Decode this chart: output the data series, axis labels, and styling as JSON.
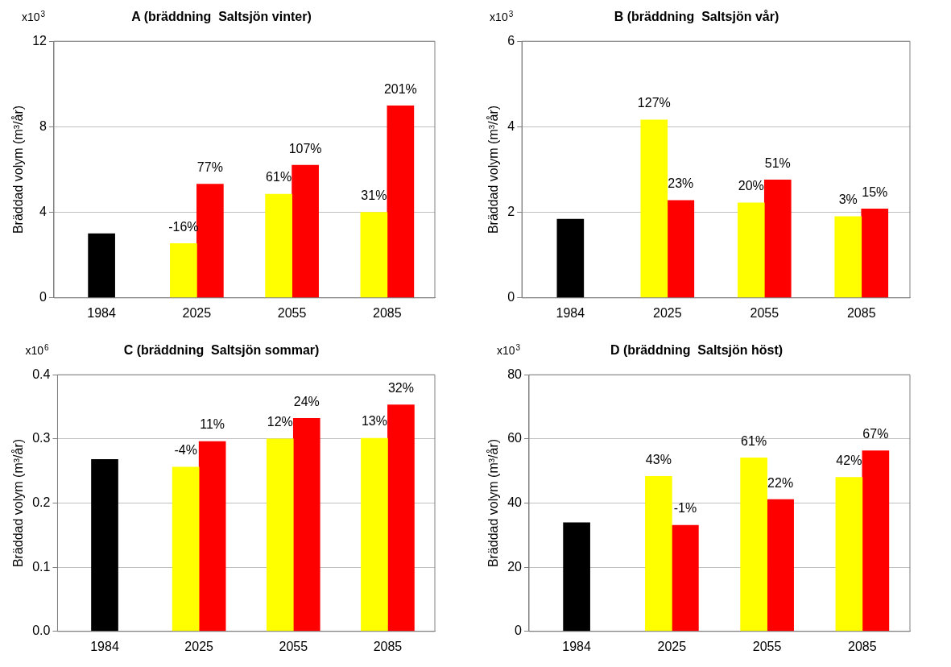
{
  "chart_data": [
    {
      "type": "bar",
      "title": "A (bräddning  Saltsjön vinter)",
      "ylabel": "Bräddad volym (m³/år)",
      "categories": [
        "1984",
        "2025",
        "2055",
        "2085"
      ],
      "ylim": [
        0,
        12
      ],
      "yticks": [
        0,
        4,
        8,
        12
      ],
      "grid": "y",
      "legend": false,
      "annotations": [
        "x10$^{3}$",
        {
          "text": "-16%",
          "x": "2025",
          "y": 2.54
        },
        {
          "text": "77%",
          "x": "2025",
          "y": 5.32
        },
        {
          "text": "61%",
          "x": "2055",
          "y": 4.85
        },
        {
          "text": "107%",
          "x": "2055",
          "y": 6.2
        },
        {
          "text": "31%",
          "x": "2085",
          "y": 4.0
        },
        {
          "text": "201%",
          "x": "2085",
          "y": 8.98
        }
      ],
      "series": [
        {
          "color": "#000000",
          "values": [
            3.0,
            null,
            null,
            null
          ]
        },
        {
          "color": "#ffff00",
          "values": [
            null,
            2.54,
            4.85,
            4.0
          ]
        },
        {
          "color": "#ff0000",
          "values": [
            null,
            5.32,
            6.2,
            8.98
          ]
        }
      ]
    },
    {
      "type": "bar",
      "title": "B (bräddning  Saltsjön vår)",
      "ylabel": "Bräddad volym (m³/år)",
      "categories": [
        "1984",
        "2025",
        "2055",
        "2085"
      ],
      "ylim": [
        0,
        6
      ],
      "yticks": [
        0,
        2,
        4,
        6
      ],
      "grid": "y",
      "legend": false,
      "annotations": [
        "x10$^{3}$",
        {
          "text": "127%",
          "x": "2025",
          "y": 4.16
        },
        {
          "text": "23%",
          "x": "2025",
          "y": 2.28
        },
        {
          "text": "20%",
          "x": "2055",
          "y": 2.22
        },
        {
          "text": "51%",
          "x": "2055",
          "y": 2.76
        },
        {
          "text": "3%",
          "x": "2085",
          "y": 1.9
        },
        {
          "text": "15%",
          "x": "2085",
          "y": 2.08
        }
      ],
      "series": [
        {
          "color": "#000000",
          "values": [
            1.84,
            null,
            null,
            null
          ]
        },
        {
          "color": "#ffff00",
          "values": [
            null,
            4.16,
            2.22,
            1.9
          ]
        },
        {
          "color": "#ff0000",
          "values": [
            null,
            2.28,
            2.76,
            2.08
          ]
        }
      ]
    },
    {
      "type": "bar",
      "title": "C (bräddning  Saltsjön sommar)",
      "ylabel": "Bräddad volym (m³/år)",
      "categories": [
        "1984",
        "2025",
        "2055",
        "2085"
      ],
      "ylim": [
        0,
        0.4
      ],
      "yticks": [
        {
          "value": 0,
          "label": "0.0"
        },
        0.1,
        0.2,
        0.3,
        0.4
      ],
      "grid": "y",
      "legend": false,
      "annotations": [
        "x10$^{6}$",
        {
          "text": "-4%",
          "x": "2025",
          "y": 0.256
        },
        {
          "text": "11%",
          "x": "2025",
          "y": 0.296
        },
        {
          "text": "12%",
          "x": "2055",
          "y": 0.3
        },
        {
          "text": "24%",
          "x": "2055",
          "y": 0.332
        },
        {
          "text": "13%",
          "x": "2085",
          "y": 0.301
        },
        {
          "text": "32%",
          "x": "2085",
          "y": 0.353
        }
      ],
      "series": [
        {
          "color": "#000000",
          "values": [
            0.268,
            null,
            null,
            null
          ]
        },
        {
          "color": "#ffff00",
          "values": [
            null,
            0.256,
            0.3,
            0.301
          ]
        },
        {
          "color": "#ff0000",
          "values": [
            null,
            0.296,
            0.332,
            0.353
          ]
        }
      ]
    },
    {
      "type": "bar",
      "title": "D (bräddning  Saltsjön höst)",
      "ylabel": "Bräddad volym (m³/år)",
      "categories": [
        "1984",
        "2025",
        "2055",
        "2085"
      ],
      "ylim": [
        0,
        80
      ],
      "yticks": [
        0,
        20,
        40,
        60,
        80
      ],
      "grid": "y",
      "legend": false,
      "annotations": [
        "x10$^{3}$",
        {
          "text": "43%",
          "x": "2025",
          "y": 48.3
        },
        {
          "text": "-1%",
          "x": "2025",
          "y": 33.1
        },
        {
          "text": "61%",
          "x": "2055",
          "y": 54.1
        },
        {
          "text": "22%",
          "x": "2055",
          "y": 41.1
        },
        {
          "text": "42%",
          "x": "2085",
          "y": 48
        },
        {
          "text": "67%",
          "x": "2085",
          "y": 56.3
        }
      ],
      "series": [
        {
          "color": "#000000",
          "values": [
            33.9,
            null,
            null,
            null
          ]
        },
        {
          "color": "#ffff00",
          "values": [
            null,
            48.3,
            54.1,
            48
          ]
        },
        {
          "color": "#ff0000",
          "values": [
            null,
            33.1,
            41.1,
            56.3
          ]
        }
      ]
    }
  ]
}
